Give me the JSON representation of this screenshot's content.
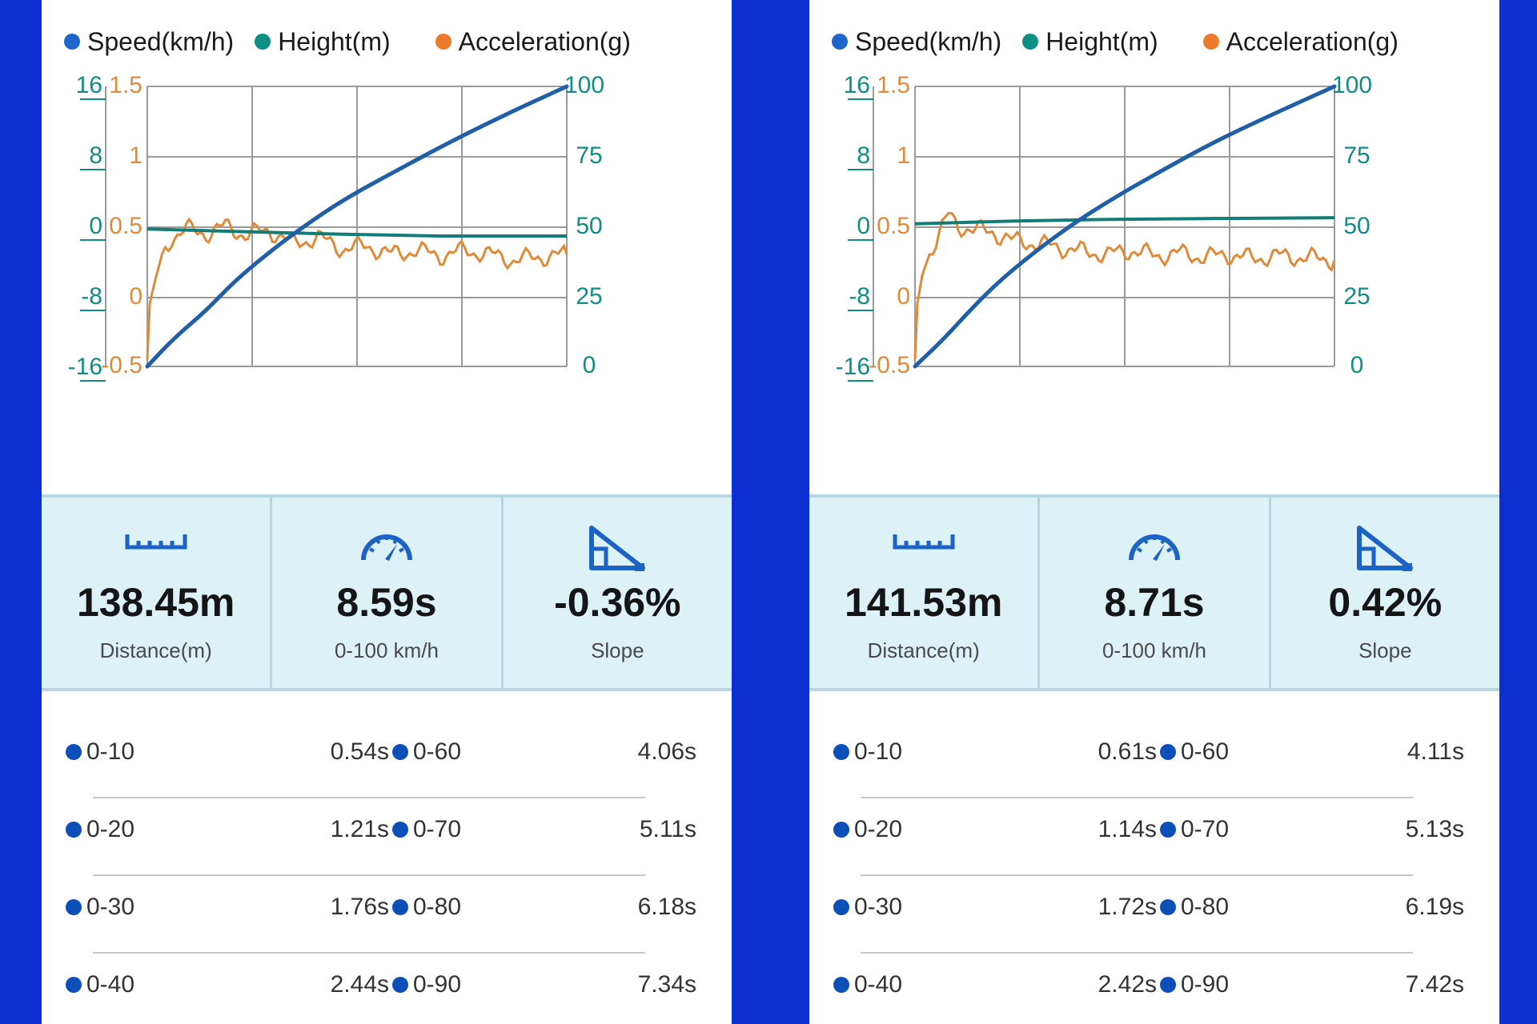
{
  "legend": [
    {
      "label": "Speed(km/h)",
      "color": "#1f66cc"
    },
    {
      "label": "Height(m)",
      "color": "#0e8f84"
    },
    {
      "label": "Acceleration(g)",
      "color": "#ec7c2c"
    }
  ],
  "colors": {
    "speed": "#1e5fa8",
    "height": "#117d74",
    "acceleration": "#e08a38",
    "frame": "#0b2fd0",
    "stats_background": "#dcf2f7",
    "icon": "#1d63c6"
  },
  "axes": {
    "height_ticks": [
      "16",
      "8",
      "0",
      "-8",
      "-16"
    ],
    "acceleration_ticks": [
      "1.5",
      "1",
      "0.5",
      "0",
      "-0.5"
    ],
    "speed_ticks": [
      "100",
      "75",
      "50",
      "25",
      "0"
    ]
  },
  "runs": [
    {
      "stats": [
        {
          "icon": "ruler-icon",
          "value": "138.45m",
          "label": "Distance(m)"
        },
        {
          "icon": "speedometer-icon",
          "value": "8.59s",
          "label": "0-100 km/h"
        },
        {
          "icon": "slope-icon",
          "value": "-0.36%",
          "label": "Slope"
        }
      ],
      "splits": [
        [
          {
            "range": "0-10",
            "time": "0.54s"
          },
          {
            "range": "0-60",
            "time": "4.06s"
          }
        ],
        [
          {
            "range": "0-20",
            "time": "1.21s"
          },
          {
            "range": "0-70",
            "time": "5.11s"
          }
        ],
        [
          {
            "range": "0-30",
            "time": "1.76s"
          },
          {
            "range": "0-80",
            "time": "6.18s"
          }
        ],
        [
          {
            "range": "0-40",
            "time": "2.44s"
          },
          {
            "range": "0-90",
            "time": "7.34s"
          }
        ]
      ],
      "chart_data": {
        "type": "line",
        "x_range": [
          0,
          8.59
        ],
        "y_ranges": {
          "speed": [
            0,
            100
          ],
          "height": [
            -16,
            16
          ],
          "acceleration": [
            -0.5,
            1.5
          ]
        },
        "grid": true,
        "legend_position": "top",
        "series": [
          {
            "name": "Speed(km/h)",
            "axis": "right",
            "x": [
              0,
              0.54,
              1.21,
              1.76,
              2.44,
              3.2,
              4.06,
              5.11,
              6.18,
              7.34,
              8.59
            ],
            "y": [
              0,
              10,
              20,
              30,
              40,
              50,
              60,
              70,
              80,
              90,
              100
            ]
          },
          {
            "name": "Height(m)",
            "axis": "left-outer",
            "x": [
              0,
              2,
              4,
              6,
              8.59
            ],
            "y": [
              -0.3,
              -0.6,
              -0.9,
              -1.1,
              -1.1
            ]
          },
          {
            "name": "Acceleration(g)",
            "axis": "left-inner",
            "x": [
              0,
              0.05,
              0.15,
              0.3,
              0.5,
              0.8,
              1.2,
              1.6,
              2.0,
              2.5,
              3.0,
              3.5,
              4.0,
              4.5,
              5.0,
              5.5,
              6.0,
              6.5,
              7.0,
              7.5,
              8.0,
              8.59
            ],
            "y": [
              -0.45,
              -0.05,
              0.1,
              0.3,
              0.42,
              0.48,
              0.45,
              0.5,
              0.44,
              0.47,
              0.38,
              0.42,
              0.34,
              0.36,
              0.3,
              0.33,
              0.29,
              0.33,
              0.3,
              0.26,
              0.28,
              0.3
            ]
          }
        ]
      }
    },
    {
      "stats": [
        {
          "icon": "ruler-icon",
          "value": "141.53m",
          "label": "Distance(m)"
        },
        {
          "icon": "speedometer-icon",
          "value": "8.71s",
          "label": "0-100 km/h"
        },
        {
          "icon": "slope-icon",
          "value": "0.42%",
          "label": "Slope"
        }
      ],
      "splits": [
        [
          {
            "range": "0-10",
            "time": "0.61s"
          },
          {
            "range": "0-60",
            "time": "4.11s"
          }
        ],
        [
          {
            "range": "0-20",
            "time": "1.14s"
          },
          {
            "range": "0-70",
            "time": "5.13s"
          }
        ],
        [
          {
            "range": "0-30",
            "time": "1.72s"
          },
          {
            "range": "0-80",
            "time": "6.19s"
          }
        ],
        [
          {
            "range": "0-40",
            "time": "2.42s"
          },
          {
            "range": "0-90",
            "time": "7.42s"
          }
        ]
      ],
      "chart_data": {
        "type": "line",
        "x_range": [
          0,
          8.71
        ],
        "y_ranges": {
          "speed": [
            0,
            100
          ],
          "height": [
            -16,
            16
          ],
          "acceleration": [
            -0.5,
            1.5
          ]
        },
        "grid": true,
        "legend_position": "top",
        "series": [
          {
            "name": "Speed(km/h)",
            "axis": "right",
            "x": [
              0,
              0.61,
              1.14,
              1.72,
              2.42,
              3.2,
              4.11,
              5.13,
              6.19,
              7.42,
              8.71
            ],
            "y": [
              0,
              10,
              20,
              30,
              40,
              50,
              60,
              70,
              80,
              90,
              100
            ]
          },
          {
            "name": "Height(m)",
            "axis": "left-outer",
            "x": [
              0,
              2,
              4,
              6,
              8.71
            ],
            "y": [
              0.3,
              0.6,
              0.8,
              0.9,
              1.0
            ]
          },
          {
            "name": "Acceleration(g)",
            "axis": "left-inner",
            "x": [
              0,
              0.05,
              0.15,
              0.3,
              0.5,
              0.7,
              0.9,
              1.2,
              1.6,
              2.0,
              2.5,
              3.0,
              3.5,
              4.0,
              4.5,
              5.0,
              5.5,
              6.0,
              6.5,
              7.0,
              7.5,
              8.0,
              8.71
            ],
            "y": [
              -0.45,
              -0.05,
              0.15,
              0.3,
              0.45,
              0.58,
              0.5,
              0.48,
              0.46,
              0.4,
              0.38,
              0.35,
              0.32,
              0.3,
              0.33,
              0.29,
              0.31,
              0.28,
              0.3,
              0.27,
              0.29,
              0.28,
              0.26
            ]
          }
        ]
      }
    }
  ]
}
